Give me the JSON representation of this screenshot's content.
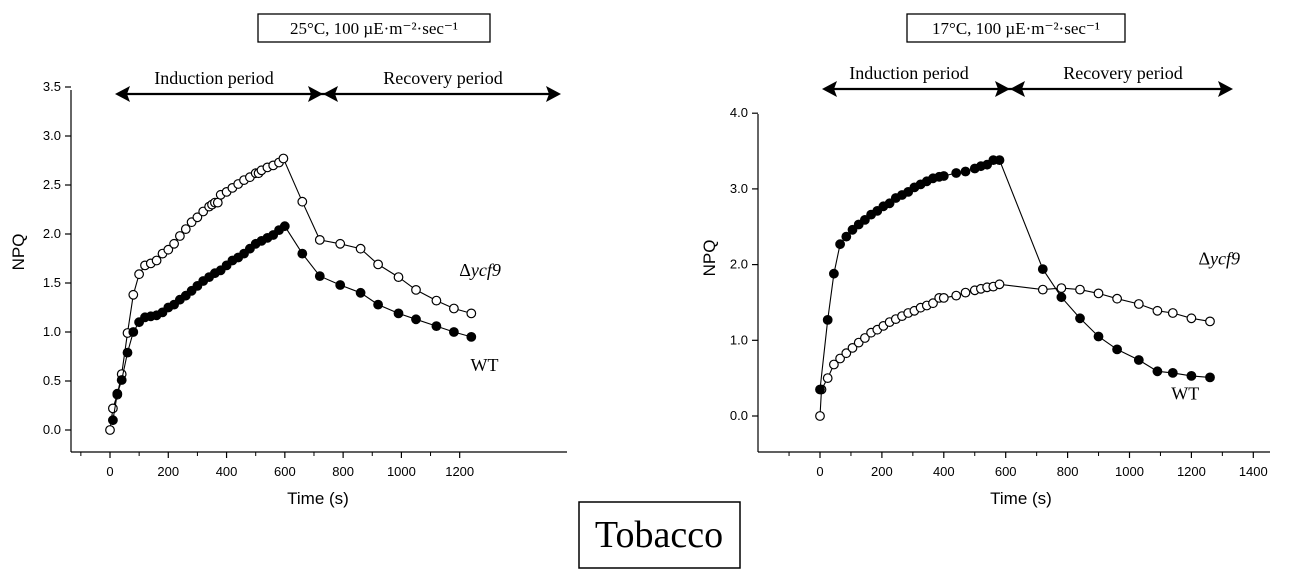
{
  "figure_label": "Tobacco",
  "chart_data": [
    {
      "type": "line",
      "condition_label": "25°C, 100 µE·m⁻²·sec⁻¹",
      "induction_label": "Induction period",
      "recovery_label": "Recovery period",
      "xlabel": "Time (s)",
      "ylabel": "NPQ",
      "xlim": [
        -60,
        1300
      ],
      "ylim": [
        -0.15,
        3.5
      ],
      "x_ticks": [
        0,
        200,
        400,
        600,
        800,
        1000,
        1200
      ],
      "x_tick_labels": [
        "0",
        "200",
        "400",
        "600",
        "800",
        "1000",
        "1200"
      ],
      "y_ticks": [
        0,
        0.5,
        1,
        1.5,
        2,
        2.5,
        3,
        3.5
      ],
      "y_tick_labels": [
        "0.0",
        "0.5",
        "1.0",
        "1.5",
        "2.0",
        "2.5",
        "3.0",
        "3.5"
      ],
      "periods": {
        "induction": [
          30,
          600
        ],
        "recovery": [
          600,
          1250
        ]
      },
      "series": [
        {
          "name": "Δycf9",
          "marker": "open-circle",
          "label_value": [
            1270,
            1.57
          ],
          "x": [
            0,
            10,
            25,
            40,
            60,
            80,
            100,
            120,
            140,
            160,
            180,
            200,
            220,
            240,
            260,
            280,
            300,
            320,
            340,
            350,
            360,
            370,
            380,
            400,
            420,
            440,
            460,
            480,
            500,
            510,
            520,
            540,
            560,
            580,
            595,
            660,
            720,
            790,
            860,
            920,
            990,
            1050,
            1120,
            1180,
            1240
          ],
          "y": [
            0.0,
            0.22,
            0.36,
            0.57,
            0.99,
            1.38,
            1.59,
            1.68,
            1.7,
            1.73,
            1.8,
            1.84,
            1.9,
            1.98,
            2.05,
            2.12,
            2.17,
            2.23,
            2.28,
            2.3,
            2.32,
            2.32,
            2.4,
            2.43,
            2.47,
            2.51,
            2.55,
            2.58,
            2.62,
            2.62,
            2.65,
            2.68,
            2.7,
            2.73,
            2.77,
            2.33,
            1.94,
            1.9,
            1.85,
            1.69,
            1.56,
            1.43,
            1.32,
            1.24,
            1.19
          ]
        },
        {
          "name": "WT",
          "marker": "filled-circle",
          "label_value": [
            1285,
            0.6
          ],
          "x": [
            10,
            25,
            40,
            60,
            80,
            100,
            120,
            140,
            160,
            180,
            200,
            220,
            240,
            260,
            280,
            300,
            320,
            340,
            360,
            380,
            400,
            420,
            440,
            460,
            480,
            500,
            520,
            540,
            560,
            580,
            600,
            660,
            720,
            790,
            860,
            920,
            990,
            1050,
            1120,
            1180,
            1240
          ],
          "y": [
            0.1,
            0.37,
            0.51,
            0.79,
            1.0,
            1.1,
            1.15,
            1.16,
            1.17,
            1.2,
            1.25,
            1.28,
            1.33,
            1.37,
            1.42,
            1.47,
            1.52,
            1.56,
            1.6,
            1.63,
            1.68,
            1.73,
            1.76,
            1.8,
            1.85,
            1.9,
            1.93,
            1.96,
            1.99,
            2.04,
            2.08,
            1.8,
            1.57,
            1.48,
            1.4,
            1.28,
            1.19,
            1.13,
            1.06,
            1.0,
            0.95
          ]
        }
      ]
    },
    {
      "type": "line",
      "condition_label": "17°C, 100 µE·m⁻²·sec⁻¹",
      "induction_label": "Induction period",
      "recovery_label": "Recovery period",
      "xlabel": "Time (s)",
      "ylabel": "NPQ",
      "xlim": [
        -200,
        1400
      ],
      "ylim": [
        -0.45,
        4.0
      ],
      "x_ticks": [
        0,
        200,
        400,
        600,
        800,
        1000,
        1200,
        1400
      ],
      "x_tick_labels": [
        "0",
        "200",
        "400",
        "600",
        "800",
        "1000",
        "1200",
        "1400"
      ],
      "y_ticks": [
        0,
        1,
        2,
        3,
        4
      ],
      "y_tick_labels": [
        "0.0",
        "1.0",
        "2.0",
        "3.0",
        "4.0"
      ],
      "periods": {
        "induction": [
          15,
          585
        ],
        "recovery": [
          585,
          1260
        ]
      },
      "series": [
        {
          "name": "Δycf9",
          "marker": "open-circle",
          "label_value": [
            1290,
            2.0
          ],
          "x": [
            0,
            5,
            25,
            45,
            65,
            85,
            105,
            125,
            145,
            165,
            185,
            205,
            225,
            245,
            265,
            285,
            305,
            325,
            345,
            365,
            385,
            400,
            440,
            470,
            500,
            520,
            540,
            560,
            580,
            720,
            780,
            840,
            900,
            960,
            1030,
            1090,
            1140,
            1200,
            1260
          ],
          "y": [
            0.0,
            0.35,
            0.5,
            0.68,
            0.76,
            0.83,
            0.9,
            0.97,
            1.03,
            1.1,
            1.14,
            1.19,
            1.24,
            1.28,
            1.32,
            1.36,
            1.39,
            1.43,
            1.46,
            1.49,
            1.56,
            1.56,
            1.59,
            1.63,
            1.66,
            1.68,
            1.7,
            1.71,
            1.74,
            1.67,
            1.69,
            1.67,
            1.62,
            1.55,
            1.48,
            1.39,
            1.36,
            1.29,
            1.25
          ]
        },
        {
          "name": "WT",
          "marker": "filled-circle",
          "label_value": [
            1180,
            0.22
          ],
          "x": [
            0,
            25,
            45,
            65,
            85,
            105,
            125,
            145,
            165,
            185,
            205,
            225,
            245,
            265,
            285,
            305,
            325,
            345,
            365,
            385,
            400,
            440,
            470,
            500,
            520,
            540,
            560,
            580,
            720,
            780,
            840,
            900,
            960,
            1030,
            1090,
            1140,
            1200,
            1260
          ],
          "y": [
            0.35,
            1.27,
            1.88,
            2.27,
            2.37,
            2.46,
            2.53,
            2.59,
            2.66,
            2.71,
            2.77,
            2.81,
            2.88,
            2.92,
            2.96,
            3.02,
            3.06,
            3.1,
            3.14,
            3.16,
            3.17,
            3.21,
            3.23,
            3.27,
            3.3,
            3.32,
            3.38,
            3.38,
            1.94,
            1.57,
            1.29,
            1.05,
            0.88,
            0.74,
            0.59,
            0.57,
            0.53,
            0.51
          ]
        }
      ]
    }
  ]
}
